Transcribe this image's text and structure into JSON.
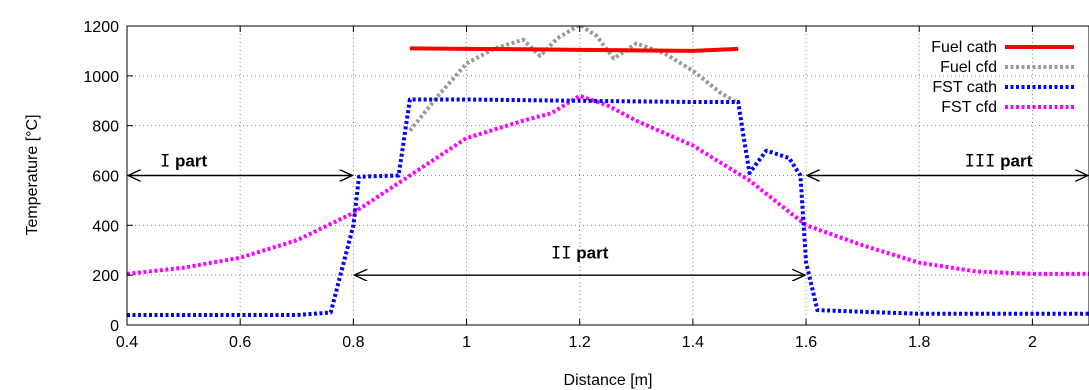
{
  "chart_data": {
    "type": "line",
    "xlabel": "Distance [m]",
    "ylabel": "Temperature [°C]",
    "xlim": [
      0.4,
      2.1
    ],
    "ylim": [
      0,
      1200
    ],
    "x_ticks": [
      "0.4",
      "0.6",
      "0.8",
      "1",
      "1.2",
      "1.4",
      "1.6",
      "1.8",
      "2"
    ],
    "y_ticks": [
      "0",
      "200",
      "400",
      "600",
      "800",
      "1000",
      "1200"
    ],
    "grid": true,
    "legend_position": "top-right",
    "series": [
      {
        "name": "Fuel cath",
        "color": "#ff0000",
        "style": "solid",
        "x": [
          0.9,
          1.0,
          1.1,
          1.2,
          1.3,
          1.4,
          1.48
        ],
        "y": [
          1110,
          1108,
          1107,
          1104,
          1102,
          1100,
          1108
        ]
      },
      {
        "name": "Fuel cfd",
        "color": "#9a9a9a",
        "style": "dotted",
        "x": [
          0.9,
          0.95,
          1.0,
          1.05,
          1.1,
          1.13,
          1.16,
          1.2,
          1.23,
          1.26,
          1.3,
          1.35,
          1.4,
          1.45,
          1.48
        ],
        "y": [
          780,
          920,
          1050,
          1110,
          1145,
          1080,
          1150,
          1205,
          1160,
          1070,
          1130,
          1090,
          1020,
          930,
          890
        ]
      },
      {
        "name": "FST cath",
        "color": "#0000ff",
        "style": "dotted",
        "x": [
          0.4,
          0.7,
          0.76,
          0.8,
          0.81,
          0.88,
          0.9,
          1.0,
          1.2,
          1.4,
          1.48,
          1.49,
          1.5,
          1.53,
          1.57,
          1.59,
          1.6,
          1.62,
          1.8,
          2.1
        ],
        "y": [
          40,
          40,
          50,
          400,
          595,
          600,
          905,
          905,
          900,
          895,
          895,
          750,
          610,
          700,
          670,
          600,
          250,
          60,
          45,
          45
        ]
      },
      {
        "name": "FST cfd",
        "color": "#ff00ff",
        "style": "dotted",
        "x": [
          0.4,
          0.5,
          0.6,
          0.7,
          0.8,
          0.9,
          1.0,
          1.1,
          1.15,
          1.2,
          1.25,
          1.3,
          1.4,
          1.5,
          1.6,
          1.7,
          1.8,
          1.9,
          2.0,
          2.1
        ],
        "y": [
          205,
          230,
          270,
          340,
          450,
          600,
          750,
          820,
          850,
          920,
          880,
          820,
          720,
          580,
          400,
          320,
          250,
          215,
          205,
          205
        ]
      }
    ],
    "annotations": [
      {
        "roman": "I",
        "label": "part",
        "x_text": 0.5,
        "y_text": 660,
        "arrow_y": 600,
        "arrow_x": [
          0.4,
          0.8
        ]
      },
      {
        "roman": "II",
        "label": "part",
        "x_text": 1.2,
        "y_text": 290,
        "arrow_y": 200,
        "arrow_x": [
          0.8,
          1.6
        ]
      },
      {
        "roman": "III",
        "label": "part",
        "x_text": 1.94,
        "y_text": 660,
        "arrow_y": 600,
        "arrow_x": [
          1.6,
          2.1
        ]
      }
    ]
  }
}
